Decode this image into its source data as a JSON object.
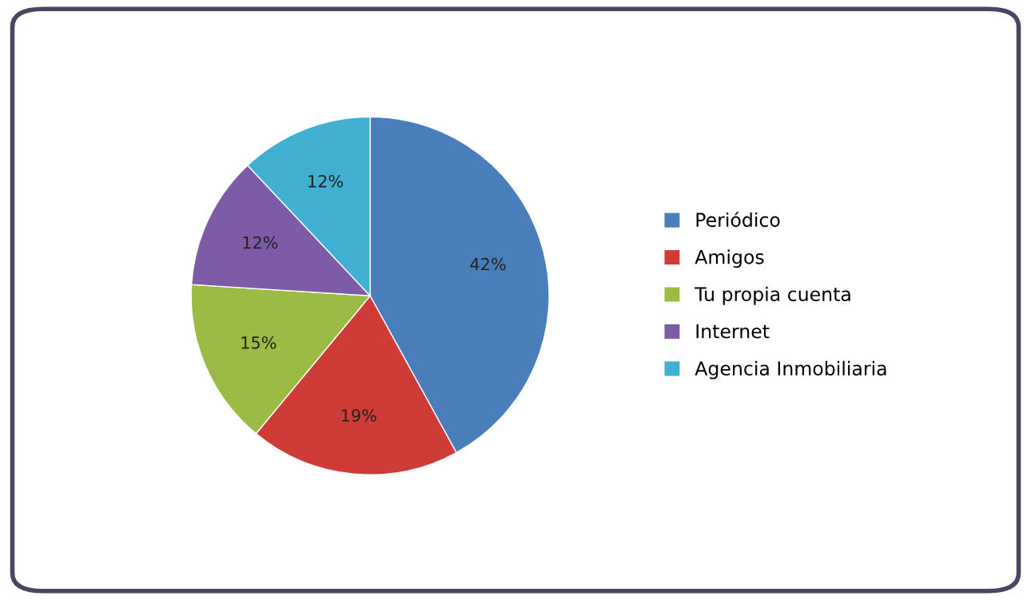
{
  "chart_data": {
    "type": "pie",
    "categories": [
      "Periódico",
      "Amigos",
      "Tu propia cuenta",
      "Internet",
      "Agencia Inmobiliaria"
    ],
    "values": [
      42,
      19,
      15,
      12,
      12
    ],
    "value_labels": [
      "42%",
      "19%",
      "15%",
      "12%",
      "12%"
    ],
    "colors": [
      "#4a7ebb",
      "#cf3b37",
      "#9bbb45",
      "#7d5ba6",
      "#3fb0cf"
    ],
    "legend": "right"
  }
}
